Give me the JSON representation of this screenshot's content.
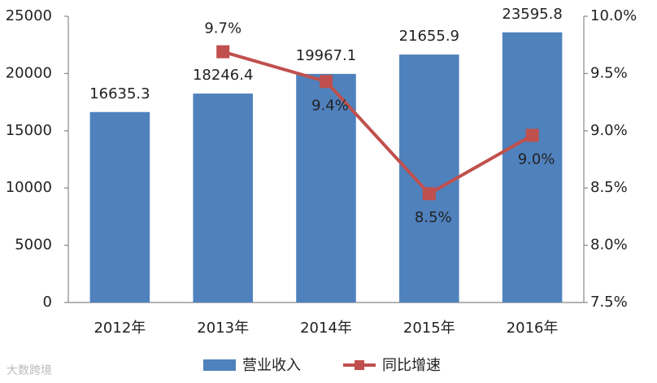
{
  "chart_data": {
    "type": "bar",
    "categories": [
      "2012年",
      "2013年",
      "2014年",
      "2015年",
      "2016年"
    ],
    "series": [
      {
        "name": "营业收入",
        "type": "bar",
        "color": "#4f81bd",
        "values": [
          16635.3,
          18246.4,
          19967.1,
          21655.9,
          23595.8
        ]
      },
      {
        "name": "同比增速",
        "type": "line",
        "axis": "y2",
        "color": "#c0504d",
        "values": [
          null,
          9.69,
          9.43,
          8.45,
          8.96
        ],
        "value_labels": [
          null,
          "9.7%",
          "9.4%",
          "8.5%",
          "9.0%"
        ]
      }
    ],
    "ylim": [
      0,
      25000
    ],
    "yticks": [
      0,
      5000,
      10000,
      15000,
      20000,
      25000
    ],
    "y2lim": [
      7.5,
      10.0
    ],
    "y2ticks": [
      {
        "value": 7.5,
        "label": "7.5%"
      },
      {
        "value": 8.0,
        "label": "8.0%"
      },
      {
        "value": 8.5,
        "label": "8.5%"
      },
      {
        "value": 9.0,
        "label": "9.0%"
      },
      {
        "value": 9.5,
        "label": "9.5%"
      },
      {
        "value": 10.0,
        "label": "10.0%"
      }
    ],
    "grid": false,
    "legend": "bottom",
    "watermark": "大数跨境"
  }
}
